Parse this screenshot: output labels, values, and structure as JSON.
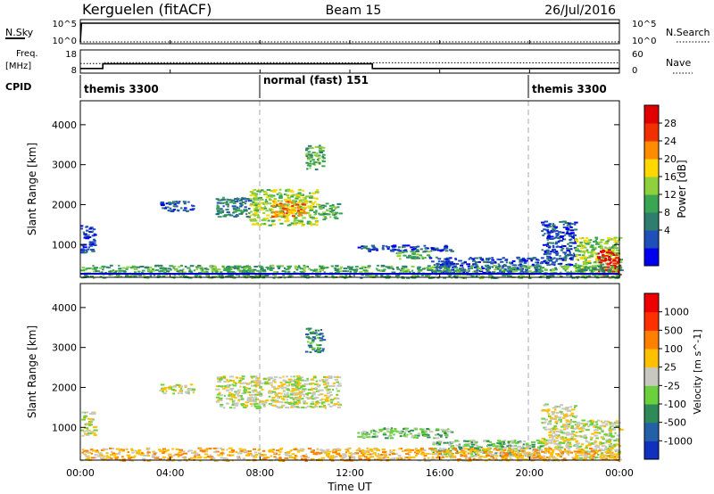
{
  "header": {
    "station": "Kerguelen (fitACF)",
    "beam": "Beam 15",
    "date": "26/Jul/2016"
  },
  "nsky_panel": {
    "left_label": "N.Sky",
    "left_ticks": [
      "10^5",
      "10^0"
    ],
    "right_label": "N.Search",
    "right_ticks": [
      "10^5",
      "10^0"
    ]
  },
  "freq_panel": {
    "label_line1": "Freq.",
    "label_line2": "[MHz]",
    "left_ticks": [
      "18",
      "8"
    ],
    "right_label": "Nave",
    "right_ticks": [
      "60",
      "0"
    ]
  },
  "cpid": {
    "label": "CPID",
    "segments": [
      {
        "text": "themis 3300",
        "start_hour": 0,
        "end_hour": 8
      },
      {
        "text": "normal (fast) 151",
        "start_hour": 8,
        "end_hour": 20
      },
      {
        "text": "themis 3300",
        "start_hour": 20,
        "end_hour": 24
      }
    ]
  },
  "power_panel": {
    "ylabel": "Slant Range [km]",
    "yticks": [
      "4000",
      "3000",
      "2000",
      "1000"
    ],
    "colorbar_label": "Power [dB]",
    "colorbar_ticks": [
      "28",
      "24",
      "20",
      "16",
      "12",
      "8",
      "4"
    ],
    "colors": [
      "#0000ee",
      "#1f4fb8",
      "#2e7d6e",
      "#3aa651",
      "#8fd13c",
      "#ffd800",
      "#ff8c00",
      "#f03000",
      "#e00000"
    ]
  },
  "velocity_panel": {
    "ylabel": "Slant Range [km]",
    "yticks": [
      "4000",
      "3000",
      "2000",
      "1000"
    ],
    "colorbar_label": "Velocity [m s^-1]",
    "colorbar_ticks": [
      "1000",
      "500",
      "100",
      "25",
      "-25",
      "-100",
      "-500",
      "-1000"
    ],
    "colors": [
      "#1030c0",
      "#2460a8",
      "#2e8a58",
      "#6ad03c",
      "#c8c8c0",
      "#ffc000",
      "#ff8000",
      "#ff3000",
      "#ee0000"
    ]
  },
  "time_axis": {
    "label": "Time UT",
    "ticks": [
      "00:00",
      "04:00",
      "08:00",
      "12:00",
      "16:00",
      "20:00",
      "00:00"
    ]
  },
  "chart_data": [
    {
      "type": "line",
      "title": "N.Sky / N.Search",
      "x_range_hours": [
        0,
        24
      ],
      "series": [
        {
          "name": "N.Sky",
          "x": [
            0,
            0.05,
            24
          ],
          "y": [
            1,
            100000,
            100000
          ]
        },
        {
          "name": "N.Search",
          "x": [
            0,
            24
          ],
          "y": [
            1,
            1
          ]
        }
      ]
    },
    {
      "type": "line",
      "title": "Freq. [MHz] / Nave",
      "x_range_hours": [
        0,
        24
      ],
      "series": [
        {
          "name": "Freq.",
          "x": [
            0,
            1.0,
            1.0,
            13.0,
            13.0,
            24
          ],
          "y": [
            9.5,
            9.5,
            12.0,
            12.0,
            9.5,
            9.5
          ]
        },
        {
          "name": "Nave",
          "x": [
            0,
            1.0,
            1.0,
            24
          ],
          "y": [
            25,
            25,
            28,
            27
          ]
        }
      ]
    },
    {
      "type": "heatmap",
      "title": "Power [dB]",
      "x_range_hours": [
        0,
        24
      ],
      "ylim": [
        180,
        4600
      ],
      "echo_regions": [
        {
          "x0": 0.0,
          "x1": 0.6,
          "y0": 800,
          "y1": 1500,
          "level": 1
        },
        {
          "x0": 3.5,
          "x1": 5.0,
          "y0": 1850,
          "y1": 2100,
          "level": 1
        },
        {
          "x0": 6.0,
          "x1": 7.5,
          "y0": 1700,
          "y1": 2200,
          "level": 2
        },
        {
          "x0": 7.5,
          "x1": 10.5,
          "y0": 1500,
          "y1": 2400,
          "level": 4
        },
        {
          "x0": 8.5,
          "x1": 10.0,
          "y0": 1700,
          "y1": 2100,
          "level": 6
        },
        {
          "x0": 10.5,
          "x1": 11.5,
          "y0": 1650,
          "y1": 2050,
          "level": 3
        },
        {
          "x0": 10.0,
          "x1": 10.8,
          "y0": 2900,
          "y1": 3500,
          "level": 3
        },
        {
          "x0": 12.3,
          "x1": 16.5,
          "y0": 850,
          "y1": 1000,
          "level": 1
        },
        {
          "x0": 14.0,
          "x1": 15.5,
          "y0": 650,
          "y1": 850,
          "level": 3
        },
        {
          "x0": 15.5,
          "x1": 20.5,
          "y0": 300,
          "y1": 700,
          "level": 1
        },
        {
          "x0": 20.5,
          "x1": 22.0,
          "y0": 500,
          "y1": 1600,
          "level": 1
        },
        {
          "x0": 22.0,
          "x1": 24.0,
          "y0": 250,
          "y1": 1200,
          "level": 4
        },
        {
          "x0": 23.0,
          "x1": 24.0,
          "y0": 250,
          "y1": 900,
          "level": 8
        },
        {
          "x0": 0.0,
          "x1": 24.0,
          "y0": 180,
          "y1": 500,
          "level": 3
        }
      ]
    },
    {
      "type": "heatmap",
      "title": "Velocity [m s^-1]",
      "x_range_hours": [
        0,
        24
      ],
      "ylim": [
        180,
        4600
      ],
      "echo_regions": [
        {
          "x0": 0.0,
          "x1": 0.6,
          "y0": 800,
          "y1": 1400,
          "level": 4
        },
        {
          "x0": 3.5,
          "x1": 5.0,
          "y0": 1850,
          "y1": 2100,
          "level": 4
        },
        {
          "x0": 6.0,
          "x1": 11.5,
          "y0": 1500,
          "y1": 2300,
          "level": 4
        },
        {
          "x0": 10.0,
          "x1": 10.8,
          "y0": 2900,
          "y1": 3500,
          "level": 2
        },
        {
          "x0": 12.3,
          "x1": 16.5,
          "y0": 750,
          "y1": 1000,
          "level": 3
        },
        {
          "x0": 15.5,
          "x1": 20.5,
          "y0": 300,
          "y1": 700,
          "level": 3
        },
        {
          "x0": 20.5,
          "x1": 22.0,
          "y0": 500,
          "y1": 1600,
          "level": 4
        },
        {
          "x0": 22.0,
          "x1": 24.0,
          "y0": 250,
          "y1": 1200,
          "level": 4
        },
        {
          "x0": 0.0,
          "x1": 24.0,
          "y0": 180,
          "y1": 500,
          "level": 5
        }
      ]
    }
  ]
}
